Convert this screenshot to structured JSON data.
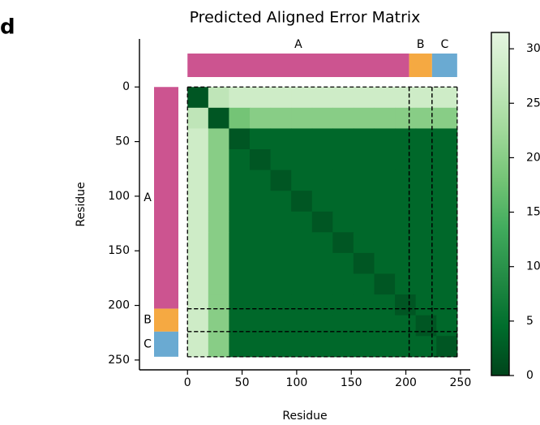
{
  "chart_data": {
    "type": "heatmap",
    "panel_label": "d",
    "title": "Predicted Aligned Error Matrix",
    "xlabel": "Residue",
    "ylabel": "Residue",
    "xlim": [
      -44,
      259
    ],
    "ylim": [
      -44,
      259
    ],
    "xticks": [
      0,
      50,
      100,
      150,
      200,
      250
    ],
    "yticks": [
      0,
      50,
      100,
      150,
      200,
      250
    ],
    "bins": [
      0,
      19,
      38,
      57,
      76,
      95,
      114,
      133,
      152,
      171,
      190,
      209,
      228,
      247
    ],
    "matrix": [
      [
        2,
        26,
        28,
        28,
        28,
        28,
        28,
        28,
        28,
        28,
        28,
        28,
        28
      ],
      [
        26,
        2,
        18,
        20,
        20,
        20,
        20,
        20,
        20,
        20,
        20,
        20,
        20
      ],
      [
        28,
        20,
        2,
        4,
        4,
        4,
        4,
        4,
        4,
        4,
        4,
        4,
        4
      ],
      [
        28,
        20,
        4,
        2,
        4,
        4,
        4,
        4,
        4,
        4,
        4,
        4,
        4
      ],
      [
        28,
        20,
        4,
        4,
        2,
        4,
        4,
        4,
        4,
        4,
        4,
        4,
        4
      ],
      [
        28,
        20,
        4,
        4,
        4,
        2,
        4,
        4,
        4,
        4,
        4,
        4,
        4
      ],
      [
        28,
        20,
        4,
        4,
        4,
        4,
        2,
        4,
        4,
        4,
        4,
        4,
        4
      ],
      [
        28,
        20,
        4,
        4,
        4,
        4,
        4,
        2,
        4,
        4,
        4,
        4,
        4
      ],
      [
        28,
        20,
        4,
        4,
        4,
        4,
        4,
        4,
        2,
        4,
        4,
        4,
        4
      ],
      [
        28,
        20,
        4,
        4,
        4,
        4,
        4,
        4,
        4,
        2,
        4,
        4,
        4
      ],
      [
        28,
        20,
        4,
        4,
        4,
        4,
        4,
        4,
        4,
        4,
        2,
        4,
        4
      ],
      [
        28,
        20,
        4,
        4,
        4,
        4,
        4,
        4,
        4,
        4,
        4,
        2,
        4
      ],
      [
        28,
        20,
        4,
        4,
        4,
        4,
        4,
        4,
        4,
        4,
        4,
        4,
        2
      ]
    ],
    "chains": [
      {
        "name": "A",
        "start": 0,
        "end": 203,
        "color": "#cc5490"
      },
      {
        "name": "B",
        "start": 203,
        "end": 224,
        "color": "#f5a942"
      },
      {
        "name": "C",
        "start": 224,
        "end": 247,
        "color": "#6aaad2"
      }
    ],
    "colormap": [
      "#00441b",
      "#006d2c",
      "#238b45",
      "#41ab5d",
      "#74c476",
      "#a1d99b",
      "#c7e9c0",
      "#e5f5e0"
    ],
    "clim": [
      0,
      31.5
    ],
    "cticks": [
      0,
      5,
      10,
      15,
      20,
      25,
      30
    ]
  }
}
